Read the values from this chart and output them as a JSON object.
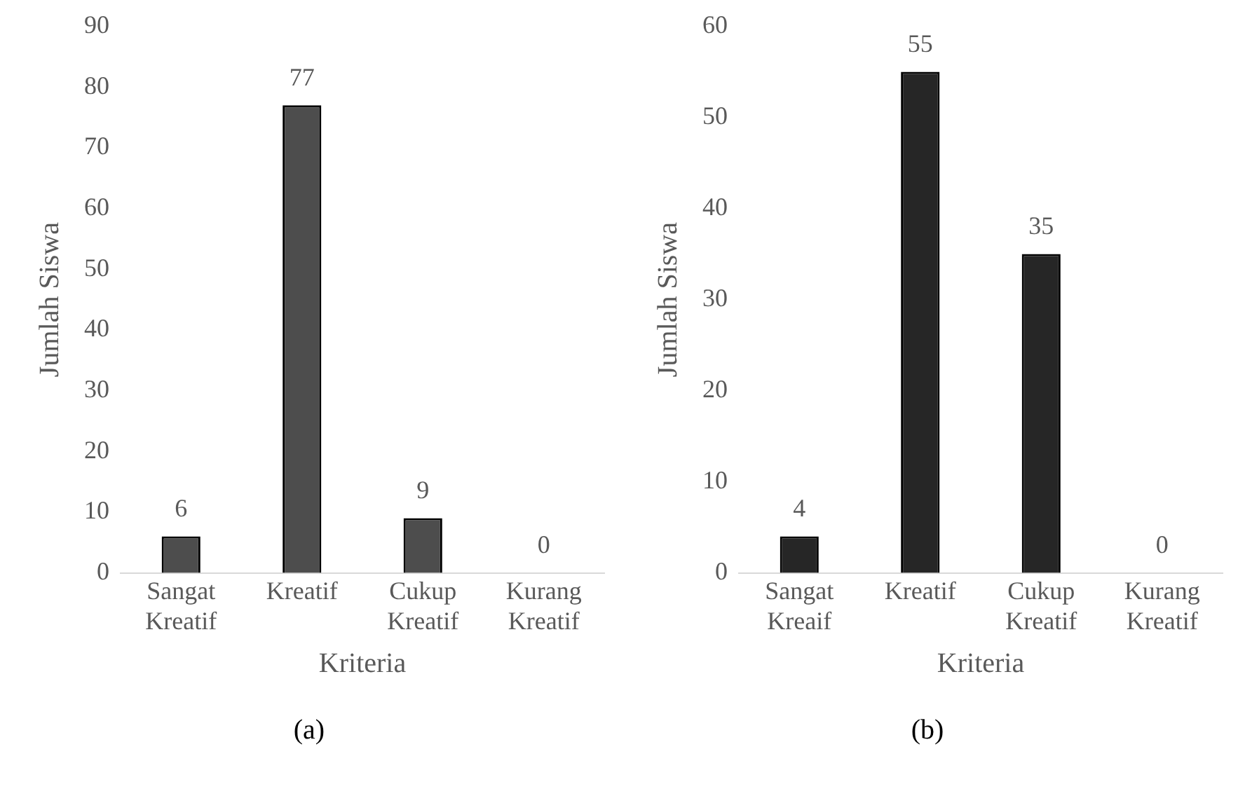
{
  "chart_data": [
    {
      "type": "bar",
      "categories": [
        "Sangat Kreatif",
        "Kreatif",
        "Cukup Kreatif",
        "Kurang Kreatif"
      ],
      "values": [
        6,
        77,
        9,
        0
      ],
      "color": "#4d4d4d",
      "ylim": [
        0,
        90
      ],
      "yticks": [
        0,
        10,
        20,
        30,
        40,
        50,
        60,
        70,
        80,
        90
      ],
      "xlabel": "Kriteria",
      "ylabel": "Jumlah Siswa",
      "data_labels": true,
      "grid": false,
      "legend": false,
      "annotations": [
        "(a)"
      ]
    },
    {
      "type": "bar",
      "categories": [
        "Sangat Kreaif",
        "Kreatif",
        "Cukup Kreatif",
        "Kurang Kreatif"
      ],
      "values": [
        4,
        55,
        35,
        0
      ],
      "color": "#262626",
      "ylim": [
        0,
        60
      ],
      "yticks": [
        0,
        10,
        20,
        30,
        40,
        50,
        60
      ],
      "xlabel": "Kriteria",
      "ylabel": "Jumlah Siswa",
      "data_labels": true,
      "grid": false,
      "legend": false,
      "annotations": [
        "(b)"
      ]
    }
  ]
}
